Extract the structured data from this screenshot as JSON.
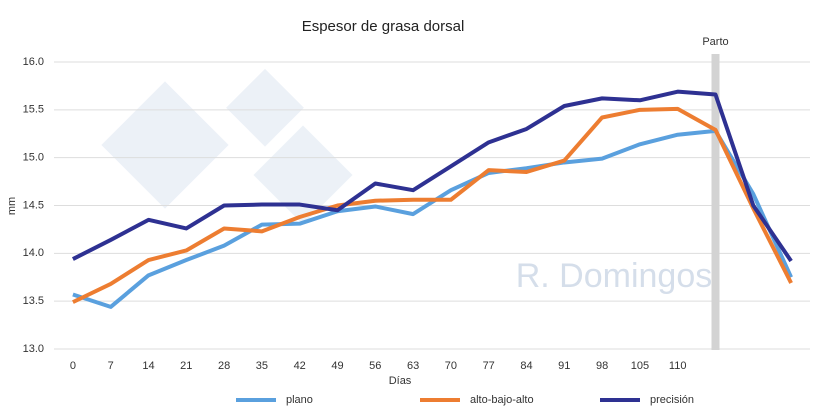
{
  "chart_data": {
    "type": "line",
    "title": "Espesor de grasa dorsal",
    "x_label": "Días",
    "y_label": "mm",
    "annotation": "Parto",
    "watermark": "R. Domingos",
    "categories": [
      "0",
      "7",
      "14",
      "21",
      "28",
      "35",
      "42",
      "49",
      "56",
      "63",
      "70",
      "77",
      "84",
      "91",
      "98",
      "105",
      "110",
      null,
      null,
      null
    ],
    "series": [
      {
        "name": "plano",
        "color": "#5aa0de",
        "values": [
          13.57,
          13.44,
          13.77,
          13.93,
          14.08,
          14.3,
          14.31,
          14.44,
          14.49,
          14.41,
          14.66,
          14.84,
          14.89,
          14.95,
          14.99,
          15.14,
          15.24,
          15.28,
          14.62,
          13.75
        ]
      },
      {
        "name": "alto-bajo-alto",
        "color": "#ed7d31",
        "values": [
          13.49,
          13.68,
          13.93,
          14.03,
          14.26,
          14.23,
          14.38,
          14.5,
          14.55,
          14.56,
          14.56,
          14.87,
          14.85,
          14.97,
          15.42,
          15.5,
          15.51,
          15.29,
          14.47,
          13.69
        ]
      },
      {
        "name": "precisión",
        "color": "#2e3192",
        "values": [
          13.94,
          14.14,
          14.35,
          14.26,
          14.5,
          14.51,
          14.51,
          14.45,
          14.73,
          14.66,
          14.91,
          15.16,
          15.3,
          15.54,
          15.62,
          15.6,
          15.69,
          15.66,
          14.5,
          13.92
        ]
      }
    ],
    "ylim": [
      13.0,
      16.0
    ],
    "yticks": [
      {
        "value": 13.0,
        "label": "13.0"
      },
      {
        "value": 13.5,
        "label": "13.5"
      },
      {
        "value": 14.0,
        "label": "14.0"
      },
      {
        "value": 14.5,
        "label": "14.5"
      },
      {
        "value": 15.0,
        "label": "15.0"
      },
      {
        "value": 15.5,
        "label": "15.5"
      },
      {
        "value": 16.0,
        "label": "16.0"
      }
    ],
    "grid": true
  }
}
